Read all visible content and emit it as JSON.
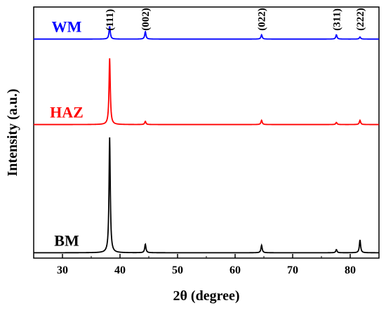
{
  "chart_data": {
    "type": "line",
    "title": "",
    "xlabel": "2θ (degree)",
    "ylabel": "Intensity (a.u.)",
    "xlim": [
      25,
      85
    ],
    "x_ticks": [
      30,
      40,
      50,
      60,
      70,
      80
    ],
    "y_ticks_shown": false,
    "grid": false,
    "legend": "inline labels at left of each trace",
    "peak_labels": [
      {
        "x": 38.2,
        "label": "(111)"
      },
      {
        "x": 44.4,
        "label": "(002)"
      },
      {
        "x": 64.6,
        "label": "(022)"
      },
      {
        "x": 77.6,
        "label": "(311)"
      },
      {
        "x": 81.7,
        "label": "(222)"
      }
    ],
    "series": [
      {
        "name": "WM",
        "color": "#0000ff",
        "baseline": 2.0,
        "peaks": [
          {
            "x": 38.2,
            "height": 0.12
          },
          {
            "x": 44.4,
            "height": 0.07
          },
          {
            "x": 64.6,
            "height": 0.04
          },
          {
            "x": 77.6,
            "height": 0.04
          },
          {
            "x": 81.7,
            "height": 0.02
          }
        ]
      },
      {
        "name": "HAZ",
        "color": "#ff0000",
        "baseline": 1.2,
        "peaks": [
          {
            "x": 38.2,
            "height": 0.62
          },
          {
            "x": 44.4,
            "height": 0.03
          },
          {
            "x": 64.6,
            "height": 0.04
          },
          {
            "x": 77.6,
            "height": 0.02
          },
          {
            "x": 81.7,
            "height": 0.04
          }
        ]
      },
      {
        "name": "BM",
        "color": "#000000",
        "baseline": 0.0,
        "peaks": [
          {
            "x": 38.2,
            "height": 1.08
          },
          {
            "x": 44.4,
            "height": 0.08
          },
          {
            "x": 64.6,
            "height": 0.07
          },
          {
            "x": 77.6,
            "height": 0.03
          },
          {
            "x": 81.7,
            "height": 0.12
          }
        ]
      }
    ]
  }
}
